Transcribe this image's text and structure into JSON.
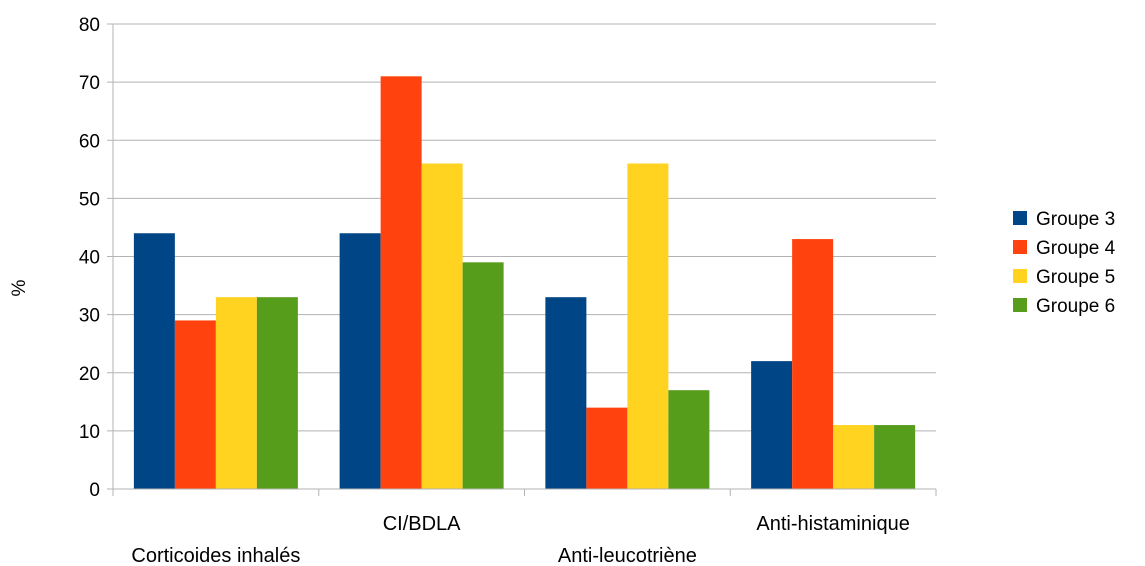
{
  "chart_data": {
    "type": "bar",
    "title": "",
    "xlabel": "",
    "ylabel": "%",
    "ylim": [
      0,
      80
    ],
    "yticks": [
      0,
      10,
      20,
      30,
      40,
      50,
      60,
      70,
      80
    ],
    "grid": true,
    "legend_position": "right",
    "categories": [
      "Corticoides inhalés",
      "CI/BDLA",
      "Anti-leucotriène",
      "Anti-histaminique"
    ],
    "series": [
      {
        "name": "Groupe 3",
        "color": "#004586",
        "values": [
          44,
          44,
          33,
          22
        ]
      },
      {
        "name": "Groupe 4",
        "color": "#ff420e",
        "values": [
          29,
          71,
          14,
          43
        ]
      },
      {
        "name": "Groupe 5",
        "color": "#ffd320",
        "values": [
          33,
          56,
          56,
          11
        ]
      },
      {
        "name": "Groupe 6",
        "color": "#579d1c",
        "values": [
          33,
          39,
          17,
          11
        ]
      }
    ]
  }
}
